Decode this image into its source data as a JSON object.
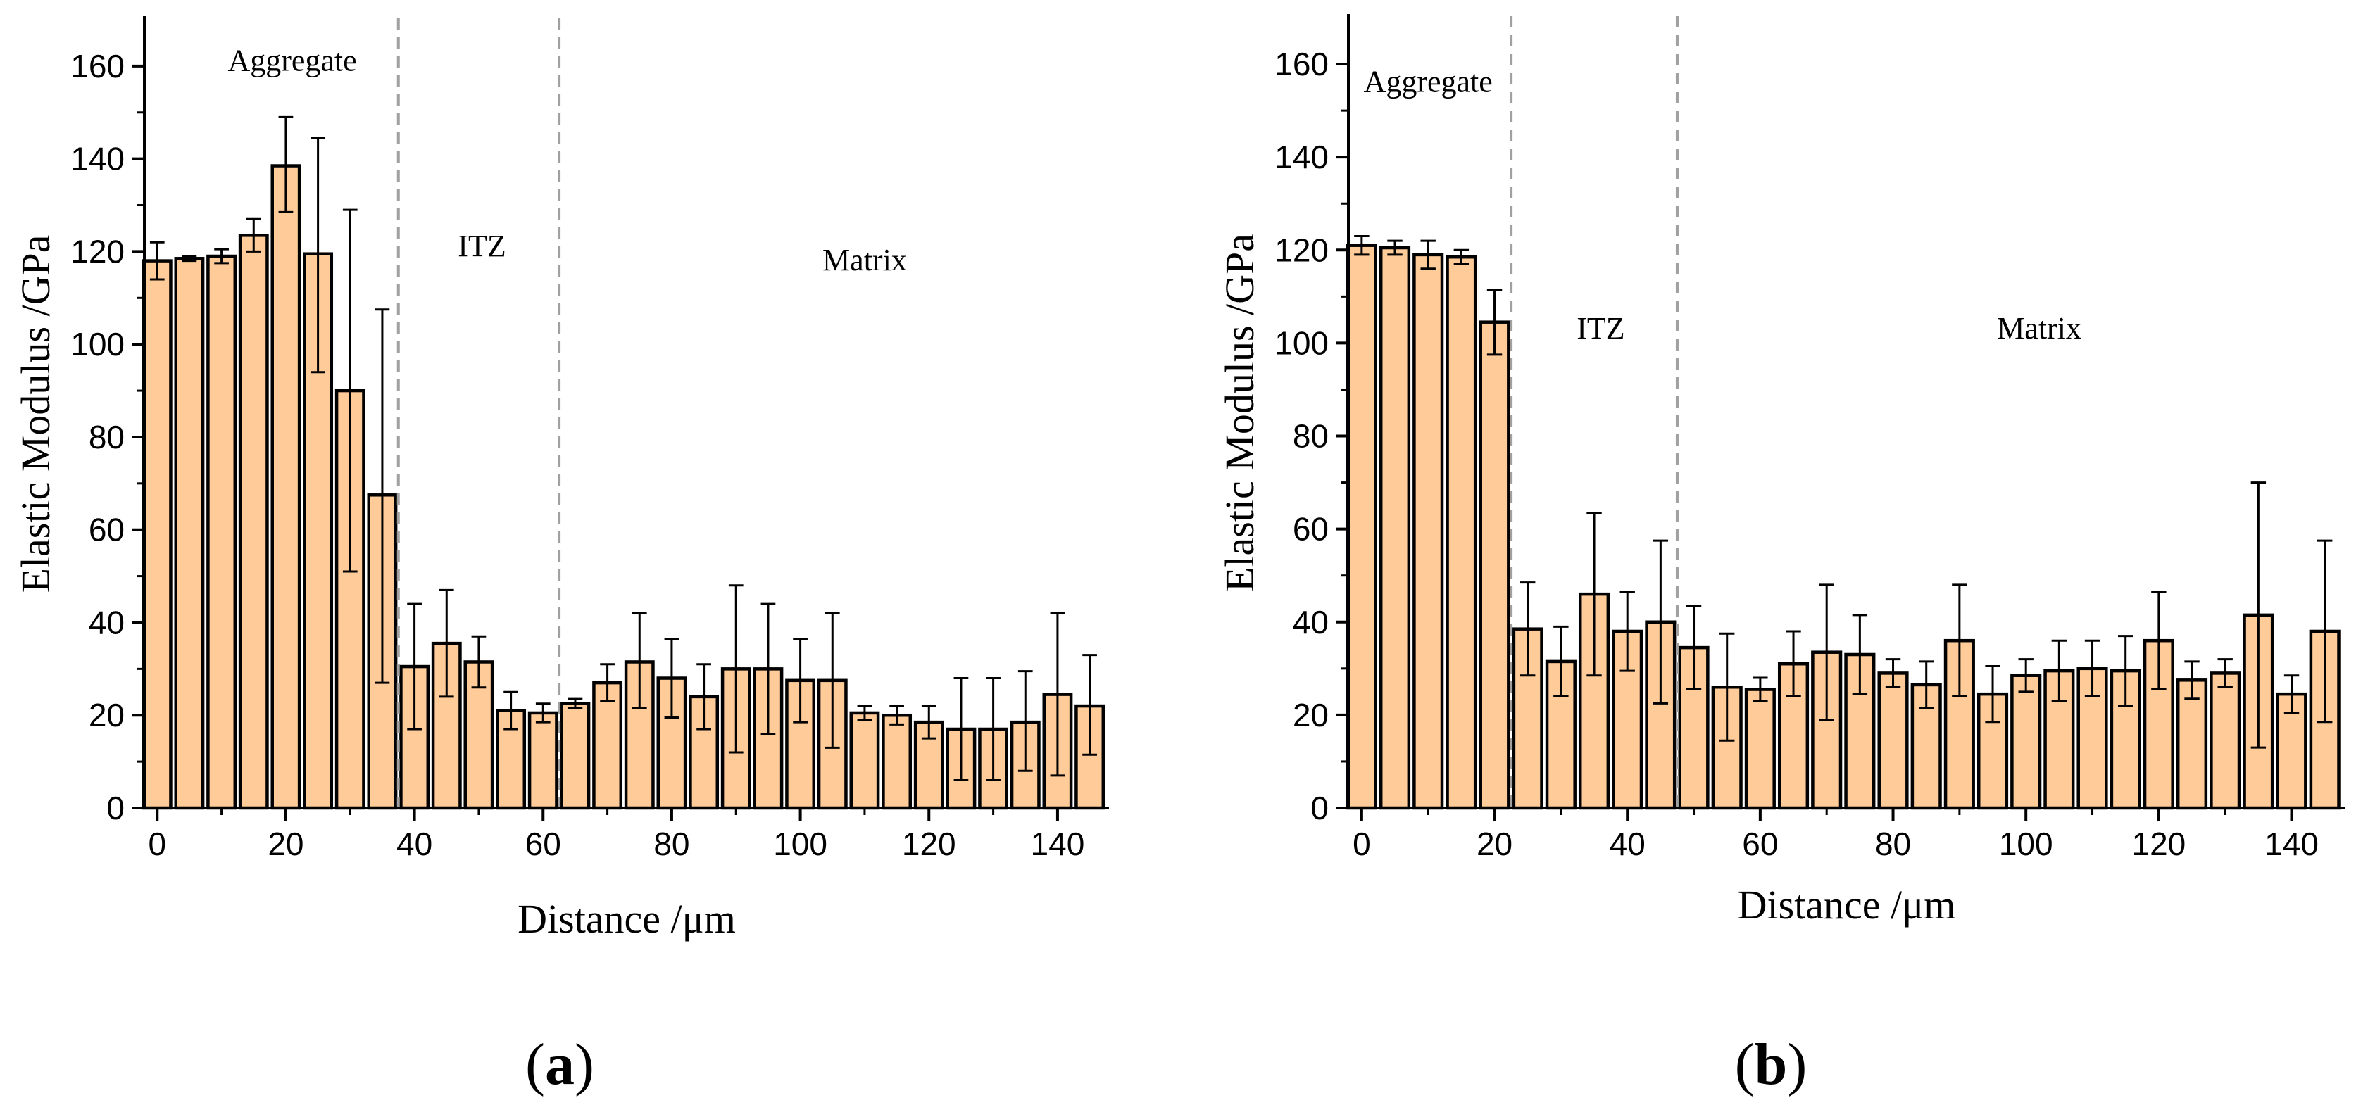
{
  "chart_data": [
    {
      "panel": "(a)",
      "panel_letter": "a",
      "type": "bar",
      "xlabel": "Distance /μm",
      "ylabel": "Elastic Modulus /GPa",
      "xlim": [
        -2,
        148
      ],
      "ylim": [
        0,
        170
      ],
      "xticks": [
        0,
        20,
        40,
        60,
        80,
        100,
        120,
        140
      ],
      "yticks": [
        0,
        20,
        40,
        60,
        80,
        100,
        120,
        140,
        160
      ],
      "bar_width": 4.2,
      "bar_color": "#FFCC99",
      "edge_color": "#000000",
      "divider_color": "#A0A0A0",
      "regions": [
        {
          "label": "Aggregate",
          "x": 21,
          "y": 159
        },
        {
          "label": "ITZ",
          "x": 50.5,
          "y": 119
        },
        {
          "label": "Matrix",
          "x": 110,
          "y": 116
        }
      ],
      "dividers": [
        37.5,
        62.5
      ],
      "x": [
        0,
        5,
        10,
        15,
        20,
        25,
        30,
        35,
        40,
        45,
        50,
        55,
        60,
        65,
        70,
        75,
        80,
        85,
        90,
        95,
        100,
        105,
        110,
        115,
        120,
        125,
        130,
        135,
        140,
        145
      ],
      "values": [
        118,
        118.5,
        119,
        123.5,
        138.5,
        119.5,
        90,
        67.5,
        30.5,
        35.5,
        31.5,
        21,
        20.5,
        22.5,
        27,
        31.5,
        28,
        24,
        30,
        30,
        27.5,
        27.5,
        20.5,
        20,
        18.5,
        17,
        17,
        18.5,
        24.5,
        22
      ],
      "err_upper": [
        122,
        119,
        120.5,
        127,
        149,
        144.5,
        129,
        107.5,
        44,
        47,
        37,
        25,
        22.5,
        23.5,
        31,
        42,
        36.5,
        31,
        48,
        44,
        36.5,
        42,
        22,
        22,
        22,
        28,
        28,
        29.5,
        42,
        33
      ],
      "err_lower": [
        114,
        118,
        117.5,
        120,
        128.5,
        94,
        51,
        27,
        17,
        24,
        26,
        17,
        18.5,
        21.5,
        23,
        21.5,
        19.5,
        17,
        12,
        16,
        18.5,
        13,
        19,
        18,
        15,
        6,
        6,
        8,
        7,
        11.5
      ]
    },
    {
      "panel": "(b)",
      "panel_letter": "b",
      "type": "bar",
      "xlabel": "Distance /μm",
      "ylabel": "Elastic Modulus /GPa",
      "xlim": [
        -2,
        148
      ],
      "ylim": [
        0,
        170
      ],
      "xticks": [
        0,
        20,
        40,
        60,
        80,
        100,
        120,
        140
      ],
      "yticks": [
        0,
        20,
        40,
        60,
        80,
        100,
        120,
        140,
        160
      ],
      "bar_width": 4.2,
      "bar_color": "#FFCC99",
      "edge_color": "#000000",
      "divider_color": "#A0A0A0",
      "regions": [
        {
          "label": "Aggregate",
          "x": 10,
          "y": 154
        },
        {
          "label": "ITZ",
          "x": 36,
          "y": 101
        },
        {
          "label": "Matrix",
          "x": 102,
          "y": 101
        }
      ],
      "dividers": [
        22.5,
        47.5
      ],
      "x": [
        0,
        5,
        10,
        15,
        20,
        25,
        30,
        35,
        40,
        45,
        50,
        55,
        60,
        65,
        70,
        75,
        80,
        85,
        90,
        95,
        100,
        105,
        110,
        115,
        120,
        125,
        130,
        135,
        140,
        145
      ],
      "values": [
        121,
        120.5,
        119,
        118.5,
        104.5,
        38.5,
        31.5,
        46,
        38,
        40,
        34.5,
        26,
        25.5,
        31,
        33.5,
        33,
        29,
        26.5,
        36,
        24.5,
        28.5,
        29.5,
        30,
        29.5,
        36,
        27.5,
        29,
        41.5,
        24.5,
        38
      ],
      "err_upper": [
        123,
        122,
        122,
        120,
        111.5,
        48.5,
        39,
        63.5,
        46.5,
        57.5,
        43.5,
        37.5,
        28,
        38,
        48,
        41.5,
        32,
        31.5,
        48,
        30.5,
        32,
        36,
        36,
        37,
        46.5,
        31.5,
        32,
        70,
        28.5,
        57.5
      ],
      "err_lower": [
        119,
        119,
        116,
        117,
        97.5,
        28.5,
        24,
        28.5,
        29.5,
        22.5,
        25.5,
        14.5,
        23,
        24,
        19,
        24.5,
        26,
        21.5,
        24,
        18.5,
        25,
        23,
        24,
        22,
        25.5,
        23.5,
        26,
        13,
        20.5,
        18.5
      ]
    }
  ]
}
